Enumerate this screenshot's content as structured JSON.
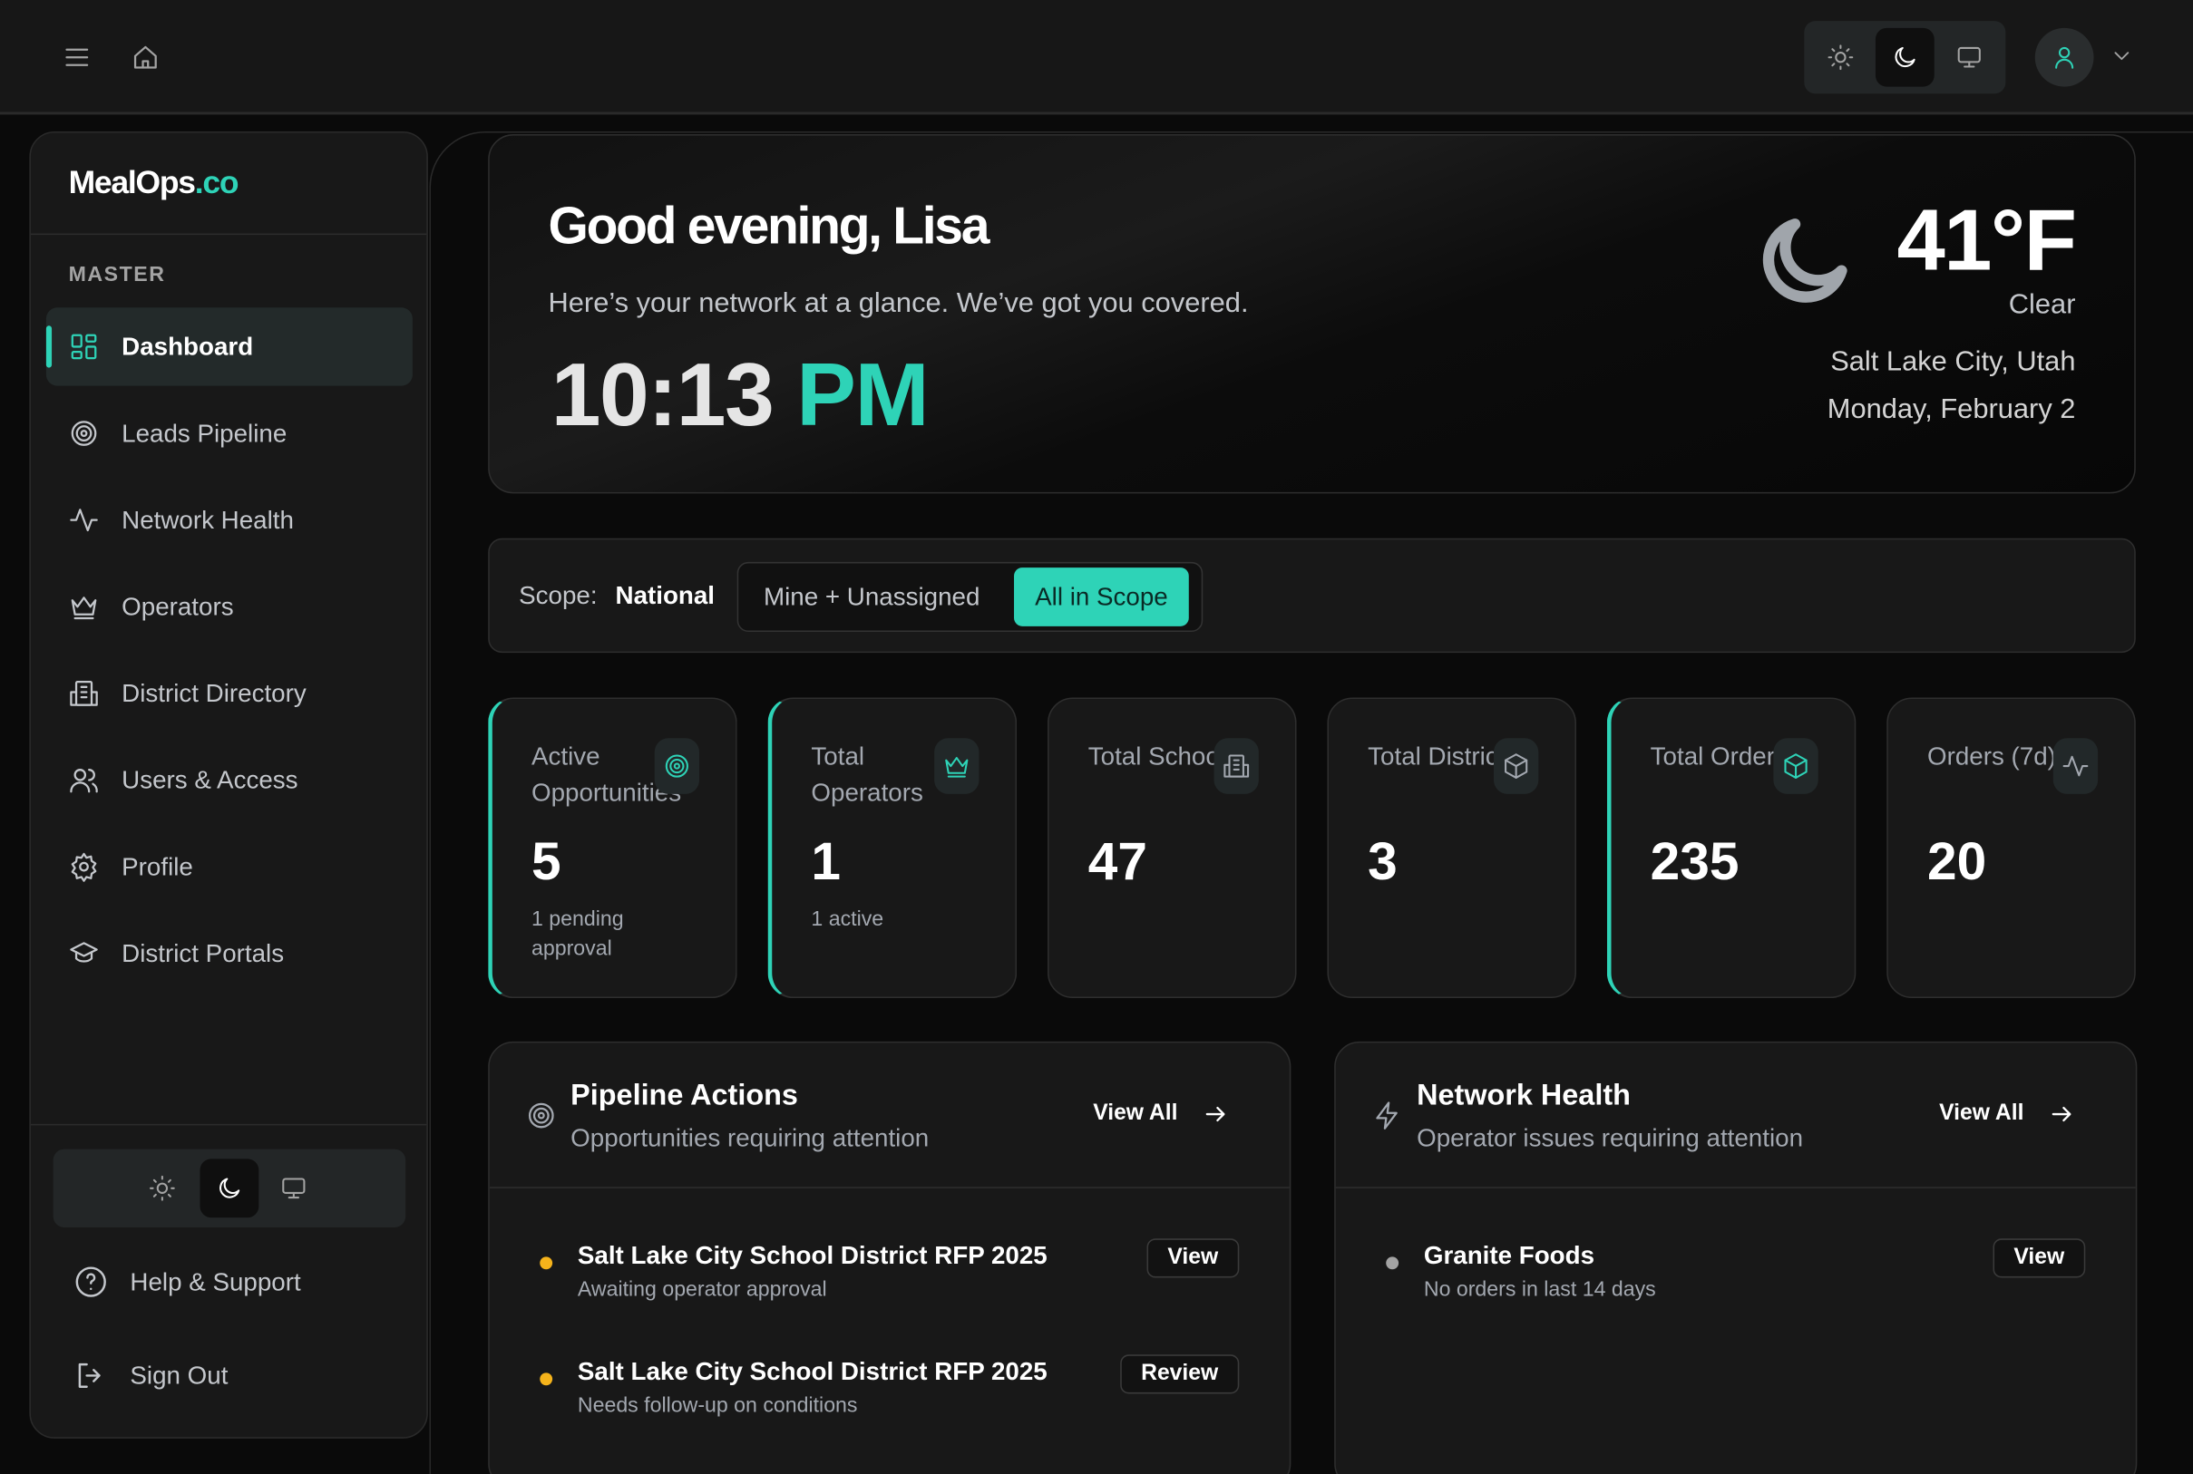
{
  "colors": {
    "accent": "#2ed3b7",
    "warning": "#f5b31b",
    "muted_dot": "#a3a3a3"
  },
  "topbar": {
    "menu_icon": "hamburger-icon",
    "home_icon": "home-icon",
    "theme_options": [
      "light",
      "dark",
      "system"
    ],
    "theme_selected": "dark"
  },
  "sidebar": {
    "brand_main": "MealOps",
    "brand_tld": ".co",
    "section": "MASTER",
    "items": [
      {
        "label": "Dashboard",
        "icon": "layout-grid-icon",
        "active": true
      },
      {
        "label": "Leads Pipeline",
        "icon": "target-icon"
      },
      {
        "label": "Network Health",
        "icon": "activity-icon"
      },
      {
        "label": "Operators",
        "icon": "crown-icon"
      },
      {
        "label": "District Directory",
        "icon": "building-icon"
      },
      {
        "label": "Users & Access",
        "icon": "users-icon"
      },
      {
        "label": "Profile",
        "icon": "gear-icon"
      },
      {
        "label": "District Portals",
        "icon": "graduation-cap-icon"
      }
    ],
    "help": "Help & Support",
    "signout": "Sign Out"
  },
  "hero": {
    "greeting": "Good evening, Lisa",
    "subtitle": "Here’s your network at a glance. We’ve got you covered.",
    "time": "10:13",
    "ampm": "PM",
    "temperature": "41°F",
    "condition": "Clear",
    "location": "Salt Lake City, Utah",
    "date": "Monday, February 2"
  },
  "scope": {
    "label": "Scope:",
    "value": "National",
    "options": [
      "Mine + Unassigned",
      "All in Scope"
    ],
    "selected": "All in Scope"
  },
  "stats": [
    {
      "title": "Active Opportunities",
      "value": "5",
      "sub": "1 pending approval",
      "icon": "target-icon"
    },
    {
      "title": "Total Operators",
      "value": "1",
      "sub": "1 active",
      "icon": "crown-icon"
    },
    {
      "title": "Total Schools",
      "value": "47",
      "icon": "building-icon"
    },
    {
      "title": "Total Districts",
      "value": "3",
      "icon": "box-icon"
    },
    {
      "title": "Total Orders",
      "value": "235",
      "icon": "box-icon"
    },
    {
      "title": "Orders (7d)",
      "value": "20",
      "icon": "activity-icon"
    }
  ],
  "pipeline": {
    "title": "Pipeline Actions",
    "subtitle": "Opportunities requiring attention",
    "view_all": "View All",
    "items": [
      {
        "title": "Salt Lake City School District RFP 2025",
        "sub": "Awaiting operator approval",
        "action": "View"
      },
      {
        "title": "Salt Lake City School District RFP 2025",
        "sub": "Needs follow-up on conditions",
        "action": "Review"
      }
    ]
  },
  "network": {
    "title": "Network Health",
    "subtitle": "Operator issues requiring attention",
    "view_all": "View All",
    "items": [
      {
        "title": "Granite Foods",
        "sub": "No orders in last 14 days",
        "action": "View"
      }
    ]
  }
}
